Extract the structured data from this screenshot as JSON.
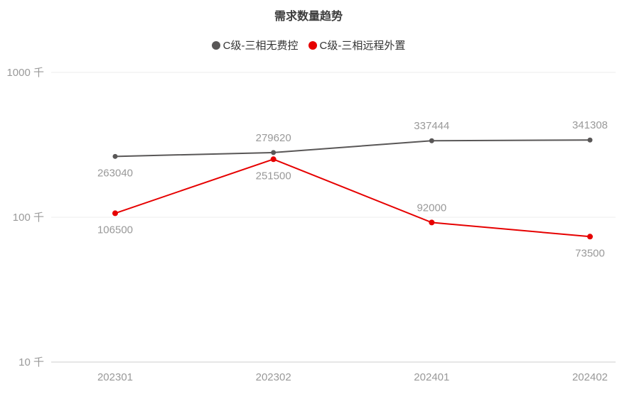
{
  "chart_data": {
    "type": "line",
    "title": "需求数量趋势",
    "x_categories": [
      "202301",
      "202302",
      "202401",
      "202402"
    ],
    "y_axis": {
      "scale": "log",
      "unit": "千",
      "ticks": [
        {
          "label": "1000 千",
          "value": 1000000
        },
        {
          "label": "100 千",
          "value": 100000
        },
        {
          "label": "10 千",
          "value": 10000
        }
      ],
      "range": [
        10000,
        1000000
      ]
    },
    "series": [
      {
        "name": "C级-三相无费控",
        "color": "#595757",
        "values": [
          263040,
          279620,
          337444,
          341308
        ],
        "label_positions": [
          "below",
          "above",
          "above",
          "above"
        ]
      },
      {
        "name": "C级-三相远程外置",
        "color": "#e60000",
        "values": [
          106500,
          251500,
          92000,
          73500
        ],
        "label_positions": [
          "below",
          "below",
          "above",
          "below"
        ]
      }
    ],
    "grid": true,
    "legend_position": "top",
    "colors": {
      "grid_line": "#eeeeee",
      "axis_line": "#dddddd",
      "tick_label": "#999999",
      "data_label": "#999999",
      "title": "#3c3c3c",
      "legend_text": "#333333"
    }
  }
}
